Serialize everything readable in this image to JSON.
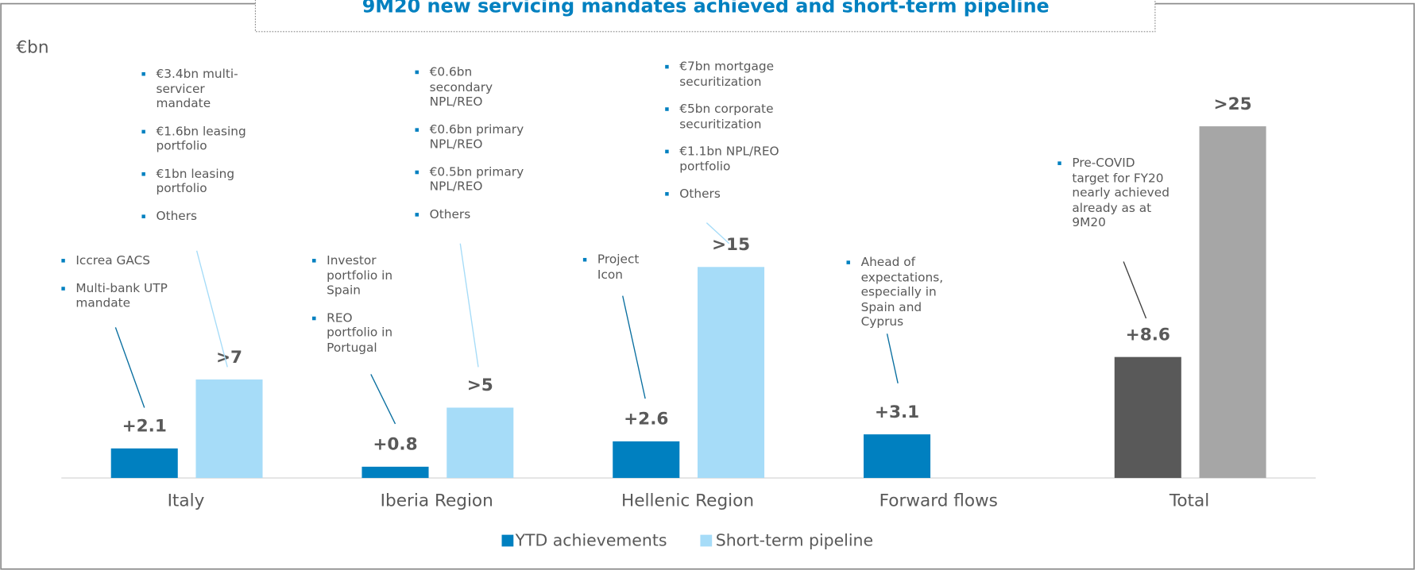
{
  "chart_data": {
    "type": "bar",
    "title": "9M20 new servicing mandates achieved and short-term pipeline",
    "unit": "€bn",
    "categories": [
      "Italy",
      "Iberia Region",
      "Hellenic Region",
      "Forward flows",
      "Total"
    ],
    "series": [
      {
        "name": "YTD achievements",
        "color": "#0080c0",
        "colors": [
          "#0080c0",
          "#0080c0",
          "#0080c0",
          "#0080c0",
          "#595959"
        ],
        "values": [
          2.1,
          0.8,
          2.6,
          3.1,
          8.6
        ],
        "value_labels": [
          "+2.1",
          "+0.8",
          "+2.6",
          "+3.1",
          "+8.6"
        ]
      },
      {
        "name": "Short-term pipeline",
        "color": "#a6dcf8",
        "colors": [
          "#a6dcf8",
          "#a6dcf8",
          "#a6dcf8",
          null,
          "#a6a6a6"
        ],
        "values": [
          7,
          5,
          15,
          null,
          25
        ],
        "value_labels": [
          ">7",
          ">5",
          ">15",
          null,
          ">25"
        ]
      }
    ],
    "annotations": [
      [
        "Iccrea GACS",
        "Multi-bank UTP mandate"
      ],
      [
        "€3.4bn multi-servicer mandate",
        "€1.6bn leasing portfolio",
        "€1bn leasing portfolio",
        "Others"
      ],
      [
        "Investor portfolio in Spain",
        "REO portfolio in Portugal"
      ],
      [
        "€0.6bn secondary NPL/REO",
        "€0.6bn primary NPL/REO",
        "€0.5bn primary NPL/REO",
        "Others"
      ],
      [
        "Project Icon"
      ],
      [
        "€7bn mortgage securitization",
        "€5bn corporate securitization",
        "€1.1bn NPL/REO portfolio",
        "Others"
      ],
      [
        "Ahead of expectations, especially in Spain and Cyprus"
      ],
      [
        "Pre-COVID target for FY20 nearly achieved already as at 9M20"
      ]
    ]
  }
}
